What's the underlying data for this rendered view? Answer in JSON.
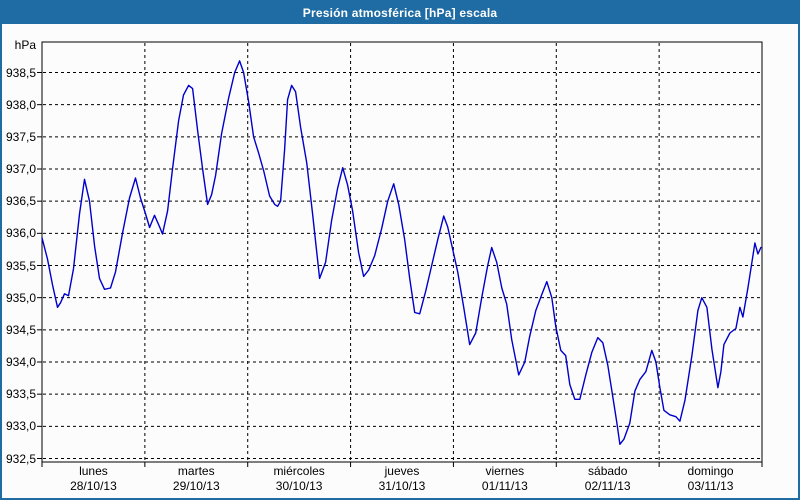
{
  "window": {
    "title": "Presión atmosférica [hPa] escala",
    "title_bar_color": "#1e6ca3",
    "border_color": "#1e6ca3"
  },
  "chart_data": {
    "type": "line",
    "title": "Presión atmosférica [hPa] escala",
    "y_unit": "hPa",
    "ylabel": "hPa",
    "xlabel": "",
    "line_color": "#0000cc",
    "grid": "dashed black, horizontal every 0.5 hPa, vertical at day boundaries",
    "legend": "none",
    "ylim": [
      932.45,
      938.97
    ],
    "y_ticks": [
      938.5,
      938.0,
      937.5,
      937.0,
      936.5,
      936.0,
      935.5,
      935.0,
      934.5,
      934.0,
      933.5,
      933.0,
      932.5
    ],
    "y_tick_labels": [
      "938,5",
      "938,0",
      "937,5",
      "937,0",
      "936,5",
      "936,0",
      "935,5",
      "935,0",
      "934,5",
      "934,0",
      "933,5",
      "933,0",
      "932,5"
    ],
    "x_range_days": [
      0,
      7
    ],
    "x_categories": [
      {
        "day": "lunes",
        "date": "28/10/13"
      },
      {
        "day": "martes",
        "date": "29/10/13"
      },
      {
        "day": "miércoles",
        "date": "30/10/13"
      },
      {
        "day": "jueves",
        "date": "31/10/13"
      },
      {
        "day": "viernes",
        "date": "01/11/13"
      },
      {
        "day": "sábado",
        "date": "02/11/13"
      },
      {
        "day": "domingo",
        "date": "03/11/13"
      }
    ],
    "points": [
      [
        0.0,
        935.93
      ],
      [
        0.053,
        935.6
      ],
      [
        0.102,
        935.2
      ],
      [
        0.151,
        934.85
      ],
      [
        0.18,
        934.92
      ],
      [
        0.219,
        935.06
      ],
      [
        0.258,
        935.03
      ],
      [
        0.306,
        935.45
      ],
      [
        0.365,
        936.3
      ],
      [
        0.413,
        936.84
      ],
      [
        0.462,
        936.5
      ],
      [
        0.511,
        935.8
      ],
      [
        0.559,
        935.3
      ],
      [
        0.608,
        935.13
      ],
      [
        0.666,
        935.15
      ],
      [
        0.715,
        935.4
      ],
      [
        0.783,
        936.0
      ],
      [
        0.851,
        936.55
      ],
      [
        0.909,
        936.86
      ],
      [
        0.958,
        936.55
      ],
      [
        1.007,
        936.3
      ],
      [
        1.046,
        936.09
      ],
      [
        1.094,
        936.28
      ],
      [
        1.143,
        936.1
      ],
      [
        1.172,
        935.99
      ],
      [
        1.221,
        936.35
      ],
      [
        1.269,
        937.0
      ],
      [
        1.328,
        937.75
      ],
      [
        1.376,
        938.15
      ],
      [
        1.425,
        938.3
      ],
      [
        1.464,
        938.25
      ],
      [
        1.513,
        937.6
      ],
      [
        1.561,
        937.0
      ],
      [
        1.61,
        936.45
      ],
      [
        1.649,
        936.6
      ],
      [
        1.688,
        936.9
      ],
      [
        1.746,
        937.55
      ],
      [
        1.814,
        938.1
      ],
      [
        1.873,
        938.5
      ],
      [
        1.921,
        938.68
      ],
      [
        1.96,
        938.5
      ],
      [
        2.009,
        938.05
      ],
      [
        2.057,
        937.5
      ],
      [
        2.106,
        937.25
      ],
      [
        2.155,
        936.97
      ],
      [
        2.213,
        936.58
      ],
      [
        2.262,
        936.45
      ],
      [
        2.291,
        936.42
      ],
      [
        2.32,
        936.5
      ],
      [
        2.359,
        937.3
      ],
      [
        2.388,
        938.08
      ],
      [
        2.427,
        938.3
      ],
      [
        2.466,
        938.2
      ],
      [
        2.514,
        937.65
      ],
      [
        2.573,
        937.1
      ],
      [
        2.631,
        936.3
      ],
      [
        2.699,
        935.3
      ],
      [
        2.757,
        935.55
      ],
      [
        2.816,
        936.2
      ],
      [
        2.874,
        936.7
      ],
      [
        2.923,
        937.02
      ],
      [
        2.971,
        936.75
      ],
      [
        3.02,
        936.35
      ],
      [
        3.078,
        935.7
      ],
      [
        3.127,
        935.33
      ],
      [
        3.176,
        935.43
      ],
      [
        3.234,
        935.65
      ],
      [
        3.302,
        936.07
      ],
      [
        3.361,
        936.5
      ],
      [
        3.419,
        936.77
      ],
      [
        3.468,
        936.45
      ],
      [
        3.526,
        935.9
      ],
      [
        3.575,
        935.3
      ],
      [
        3.623,
        934.77
      ],
      [
        3.672,
        934.75
      ],
      [
        3.73,
        935.1
      ],
      [
        3.789,
        935.5
      ],
      [
        3.847,
        935.9
      ],
      [
        3.905,
        936.27
      ],
      [
        3.944,
        936.1
      ],
      [
        3.993,
        935.75
      ],
      [
        4.042,
        935.4
      ],
      [
        4.1,
        934.85
      ],
      [
        4.158,
        934.27
      ],
      [
        4.217,
        934.45
      ],
      [
        4.275,
        935.0
      ],
      [
        4.333,
        935.5
      ],
      [
        4.372,
        935.78
      ],
      [
        4.421,
        935.55
      ],
      [
        4.47,
        935.15
      ],
      [
        4.518,
        934.9
      ],
      [
        4.567,
        934.35
      ],
      [
        4.635,
        933.8
      ],
      [
        4.694,
        934.0
      ],
      [
        4.742,
        934.4
      ],
      [
        4.801,
        934.8
      ],
      [
        4.859,
        935.05
      ],
      [
        4.908,
        935.25
      ],
      [
        4.956,
        935.0
      ],
      [
        4.995,
        934.55
      ],
      [
        5.044,
        934.18
      ],
      [
        5.092,
        934.1
      ],
      [
        5.131,
        933.65
      ],
      [
        5.18,
        933.42
      ],
      [
        5.229,
        933.42
      ],
      [
        5.287,
        933.8
      ],
      [
        5.345,
        934.15
      ],
      [
        5.404,
        934.38
      ],
      [
        5.452,
        934.3
      ],
      [
        5.501,
        933.95
      ],
      [
        5.55,
        933.45
      ],
      [
        5.589,
        933.05
      ],
      [
        5.618,
        932.72
      ],
      [
        5.657,
        932.8
      ],
      [
        5.715,
        933.05
      ],
      [
        5.764,
        933.55
      ],
      [
        5.813,
        933.73
      ],
      [
        5.871,
        933.85
      ],
      [
        5.929,
        934.18
      ],
      [
        5.968,
        934.0
      ],
      [
        6.007,
        933.6
      ],
      [
        6.046,
        933.25
      ],
      [
        6.104,
        933.18
      ],
      [
        6.163,
        933.15
      ],
      [
        6.202,
        933.08
      ],
      [
        6.25,
        933.4
      ],
      [
        6.318,
        934.1
      ],
      [
        6.377,
        934.8
      ],
      [
        6.415,
        935.0
      ],
      [
        6.464,
        934.85
      ],
      [
        6.513,
        934.2
      ],
      [
        6.571,
        933.6
      ],
      [
        6.6,
        933.85
      ],
      [
        6.63,
        934.27
      ],
      [
        6.688,
        934.45
      ],
      [
        6.746,
        934.52
      ],
      [
        6.785,
        934.85
      ],
      [
        6.814,
        934.7
      ],
      [
        6.863,
        935.15
      ],
      [
        6.902,
        935.55
      ],
      [
        6.931,
        935.85
      ],
      [
        6.96,
        935.68
      ],
      [
        6.989,
        935.78
      ]
    ]
  }
}
